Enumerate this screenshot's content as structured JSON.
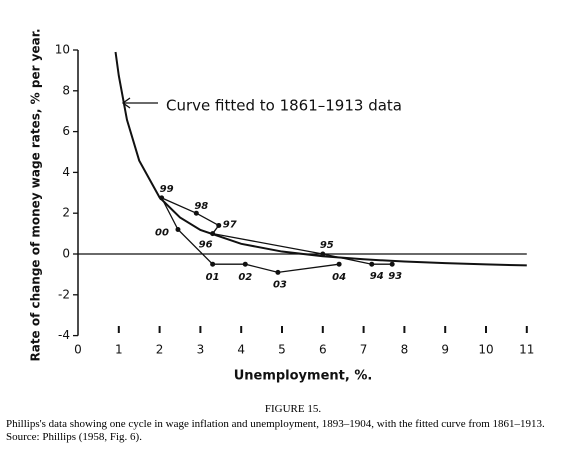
{
  "chart_data": {
    "type": "line",
    "y_label": "Rate of change of money wage rates, % per year.",
    "x_label": "Unemployment, %.",
    "annotation": "Curve fitted to 1861–1913 data",
    "xlim": [
      0,
      11
    ],
    "ylim": [
      -4,
      10
    ],
    "xticks": [
      0,
      1,
      2,
      3,
      4,
      5,
      6,
      7,
      8,
      9,
      10,
      11
    ],
    "yticks": [
      -4,
      -2,
      0,
      2,
      4,
      6,
      8,
      10
    ],
    "series": [
      {
        "color": "#111111",
        "x": [
          0.92,
          1,
          1.2,
          1.5,
          2,
          2.5,
          3,
          4,
          5,
          6,
          7,
          8,
          9,
          10,
          11
        ],
        "y": [
          9.9,
          8.74,
          6.58,
          4.58,
          2.77,
          1.79,
          1.18,
          0.5,
          0.12,
          -0.11,
          -0.26,
          -0.37,
          -0.45,
          -0.51,
          -0.56
        ]
      },
      {
        "color": "#111111",
        "labels": [
          "93",
          "94",
          "95",
          "96",
          "97",
          "98",
          "99",
          "00",
          "01",
          "02",
          "03",
          "04"
        ],
        "x": [
          7.7,
          7.2,
          6.0,
          3.3,
          3.45,
          2.9,
          2.05,
          2.45,
          3.3,
          4.1,
          4.9,
          6.4
        ],
        "y": [
          -0.5,
          -0.5,
          0,
          1.0,
          1.4,
          2.0,
          2.75,
          1.2,
          -0.5,
          -0.5,
          -0.9,
          -0.5
        ]
      }
    ]
  },
  "caption": {
    "figure": "FIGURE 15.",
    "text": "Phillips's data showing one cycle in wage inflation and unemployment, 1893–1904, with the fitted curve from 1861–1913. Source: Phillips (1958, Fig. 6)."
  }
}
